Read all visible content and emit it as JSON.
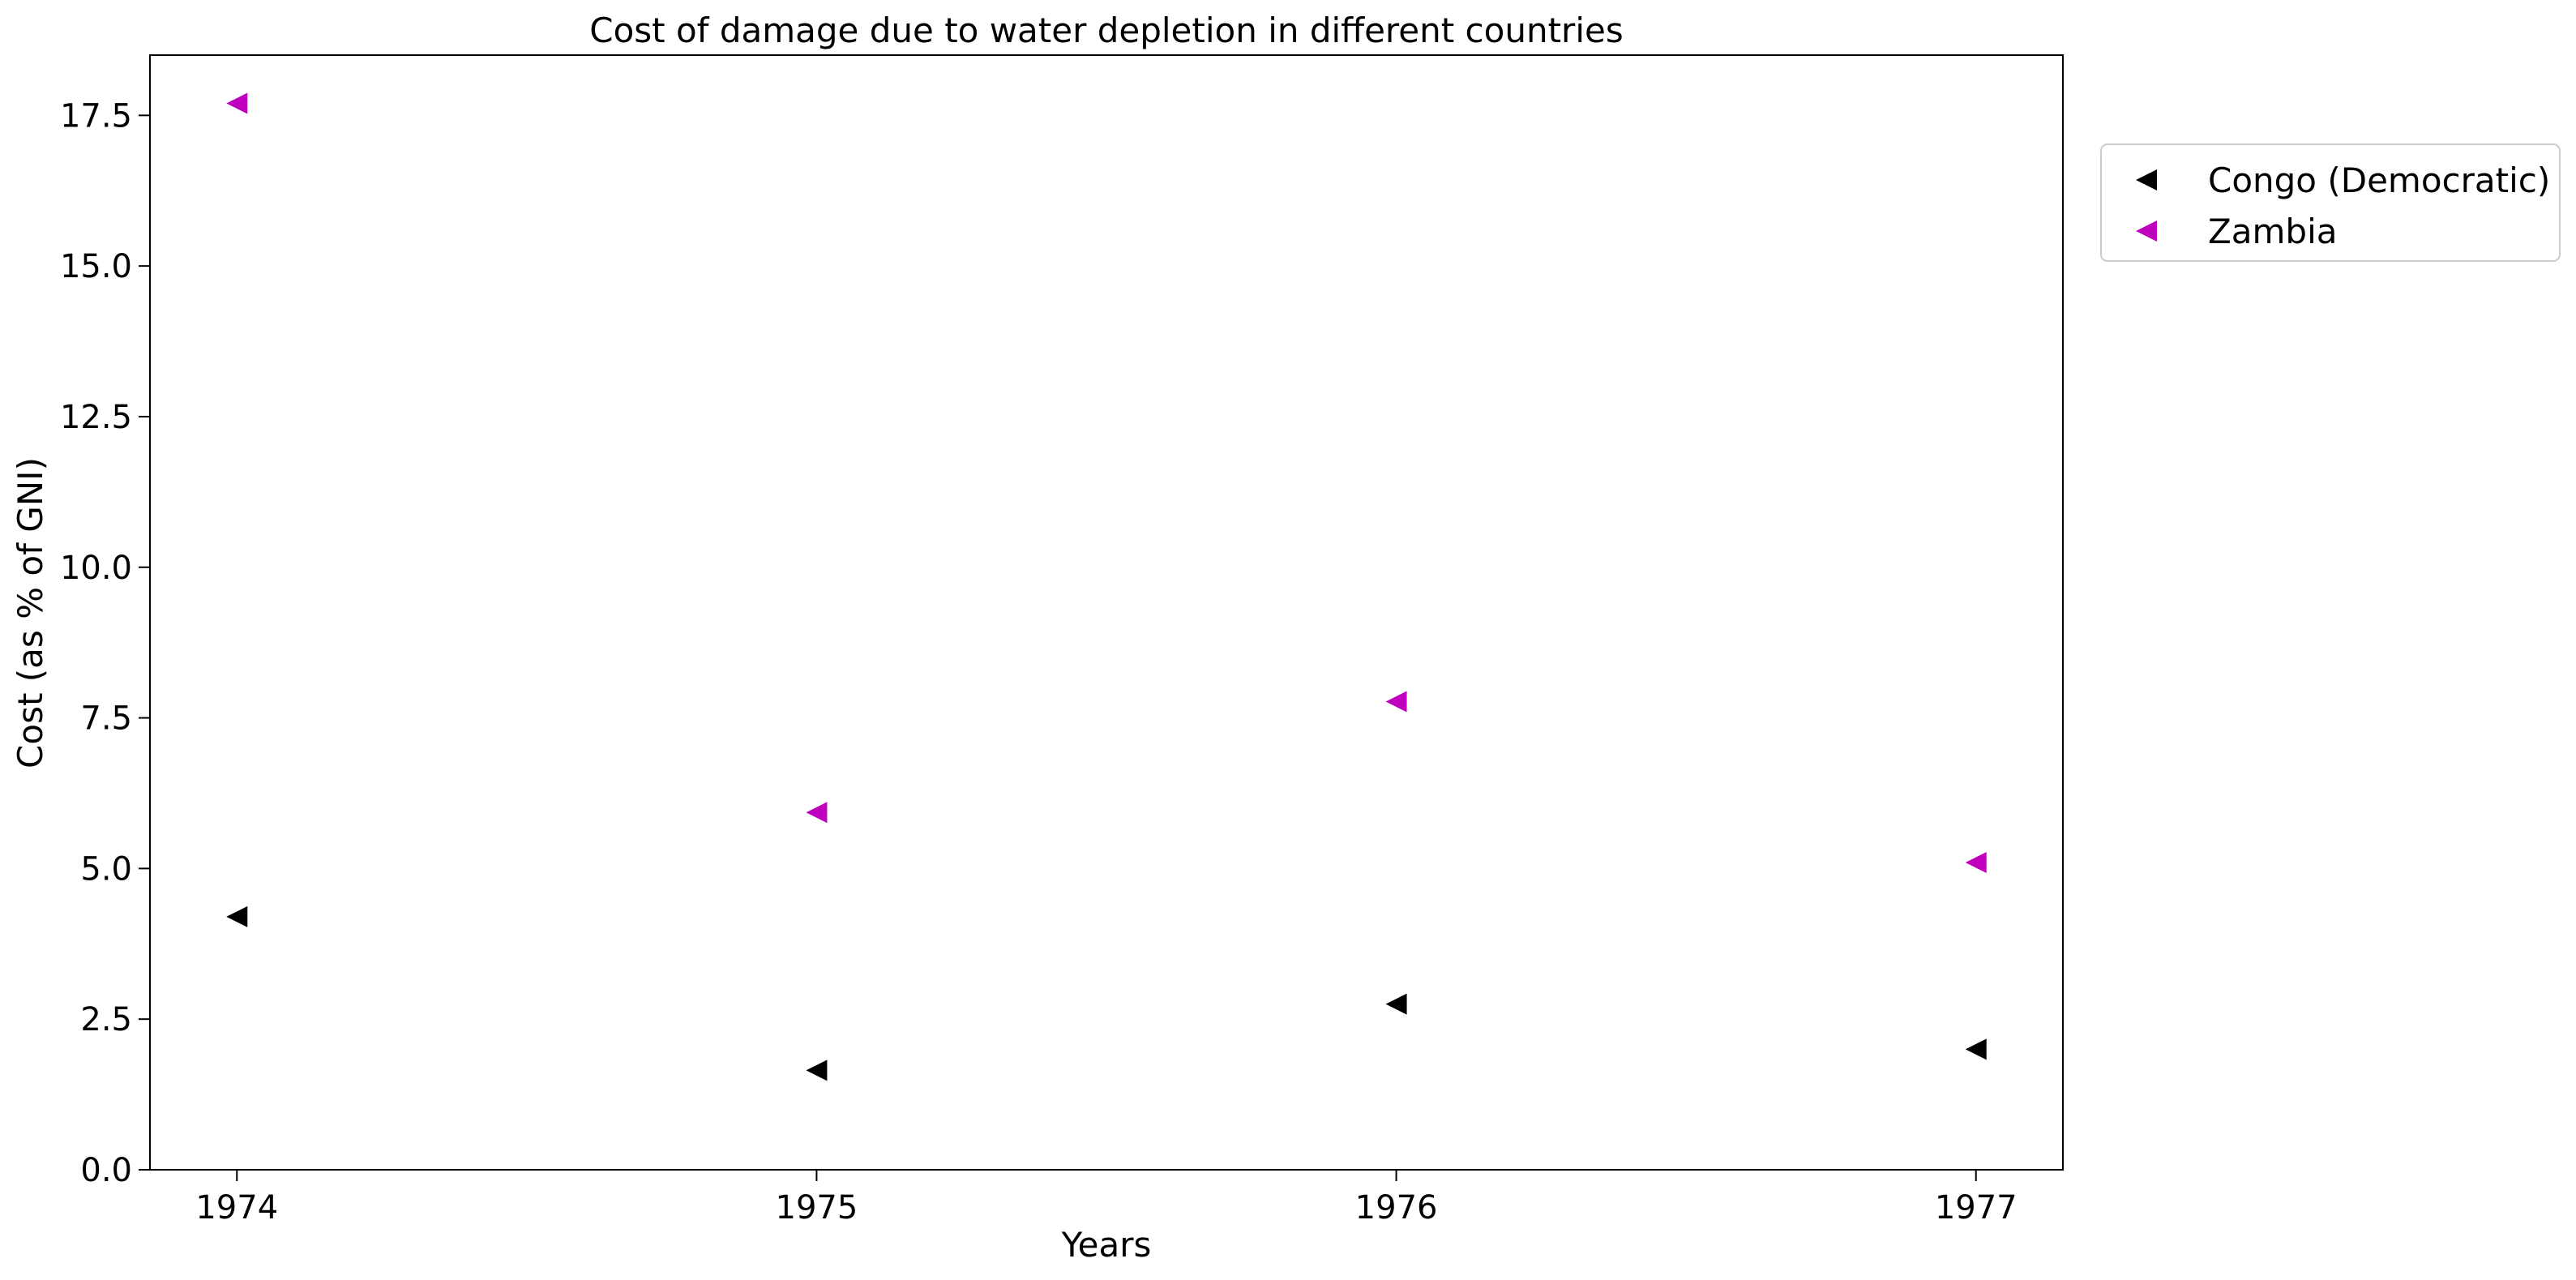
{
  "chart_data": {
    "type": "scatter",
    "title": "Cost of damage due to water depletion in different countries",
    "xlabel": "Years",
    "ylabel": "Cost (as % of GNI)",
    "x": [
      1974,
      1975,
      1976,
      1977
    ],
    "x_tick_labels": [
      "1974",
      "1975",
      "1976",
      "1977"
    ],
    "xlim": [
      1973.85,
      1977.15
    ],
    "ylim": [
      0,
      18.5
    ],
    "y_ticks": [
      0.0,
      2.5,
      5.0,
      7.5,
      10.0,
      12.5,
      15.0,
      17.5
    ],
    "y_tick_labels": [
      "0.0",
      "2.5",
      "5.0",
      "7.5",
      "10.0",
      "12.5",
      "15.0",
      "17.5"
    ],
    "marker": "triangle-left",
    "grid": false,
    "legend_position": "outside-right-top",
    "series": [
      {
        "name": "Congo (Democratic)",
        "color": "#000000",
        "values": [
          4.2,
          1.65,
          2.75,
          2.0
        ]
      },
      {
        "name": "Zambia",
        "color": "#bf00bf",
        "values": [
          17.7,
          5.93,
          7.77,
          5.1
        ]
      }
    ]
  }
}
